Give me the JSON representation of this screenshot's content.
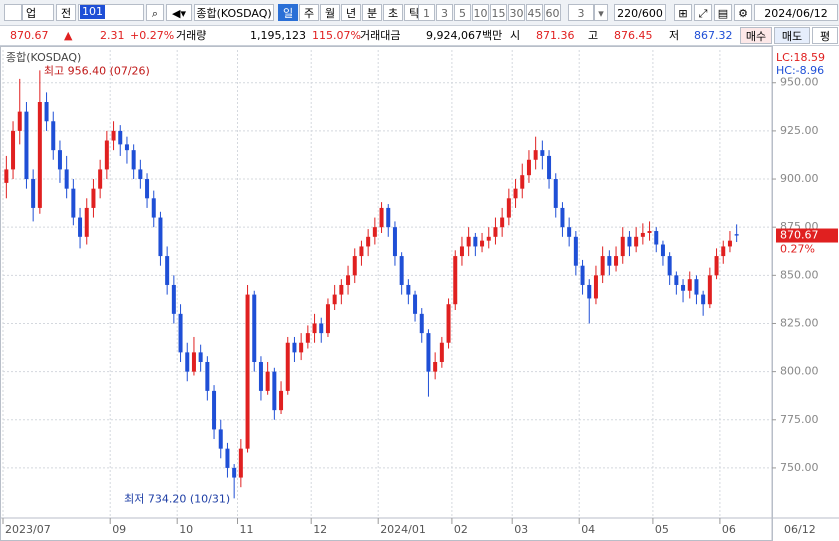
{
  "toolbar": {
    "market": "업",
    "scope": "전",
    "code": "101",
    "periods": [
      "일",
      "주",
      "월",
      "년",
      "분",
      "초",
      "틱"
    ],
    "intervals": [
      "1",
      "3",
      "5",
      "10",
      "15",
      "30",
      "45",
      "60"
    ],
    "count": "3",
    "range": "220/600",
    "date": "2024/06/12"
  },
  "info": {
    "change": "2.31",
    "change_pct": "+0.27%",
    "volume_label": "거래량",
    "volume": "1,195,123",
    "volume_pct": "115.07%",
    "amount_label": "거래대금",
    "amount": "9,924,067백만",
    "open_label": "시",
    "high_label": "고",
    "low_label": "저",
    "buy": "매수",
    "sell": "매도",
    "avg": "평"
  },
  "chart_data": {
    "type": "candlestick",
    "title": "종합(KOSDAQ)",
    "lc": "LC:18.59",
    "hc": "HC:-8.96",
    "last_change": "0.27%",
    "up_color": "#e02020",
    "down_color": "#1f4fd6",
    "annotations": [
      "최고 956.40 (07/26)",
      "최저 734.20 (10/31)"
    ],
    "ylim": [
      724,
      967
    ],
    "yticks": [
      {
        "value": 750,
        "label": "750.00"
      },
      {
        "value": 775,
        "label": "775.00"
      },
      {
        "value": 800,
        "label": "800.00"
      },
      {
        "value": 825,
        "label": "825.00"
      },
      {
        "value": 850,
        "label": "850.00"
      },
      {
        "value": 875,
        "label": "875.00"
      },
      {
        "value": 900,
        "label": "900.00"
      },
      {
        "value": 925,
        "label": "925.00"
      },
      {
        "value": 950,
        "label": "950.00"
      }
    ],
    "xticks": [
      {
        "value": 0,
        "label": "2023/07"
      },
      {
        "value": 16,
        "label": "09"
      },
      {
        "value": 26,
        "label": "10"
      },
      {
        "value": 35,
        "label": "11"
      },
      {
        "value": 46,
        "label": "12"
      },
      {
        "value": 56,
        "label": "2024/01"
      },
      {
        "value": 67,
        "label": "02"
      },
      {
        "value": 76,
        "label": "03"
      },
      {
        "value": 86,
        "label": "04"
      },
      {
        "value": 97,
        "label": "05"
      },
      {
        "value": 107,
        "label": "06"
      }
    ],
    "last_date": "06/12",
    "grid": true,
    "ohlc": [
      [
        898,
        912,
        890,
        905
      ],
      [
        905,
        930,
        900,
        925
      ],
      [
        925,
        952,
        918,
        935
      ],
      [
        935,
        940,
        895,
        900
      ],
      [
        900,
        905,
        878,
        885
      ],
      [
        885,
        956.4,
        882,
        940
      ],
      [
        940,
        945,
        925,
        930
      ],
      [
        930,
        935,
        910,
        915
      ],
      [
        915,
        920,
        898,
        905
      ],
      [
        905,
        912,
        890,
        895
      ],
      [
        895,
        900,
        876,
        880
      ],
      [
        880,
        885,
        864,
        870
      ],
      [
        870,
        890,
        866,
        885
      ],
      [
        885,
        900,
        880,
        895
      ],
      [
        895,
        910,
        890,
        905
      ],
      [
        905,
        925,
        900,
        920
      ],
      [
        920,
        930,
        915,
        925
      ],
      [
        925,
        928,
        912,
        918
      ],
      [
        918,
        922,
        908,
        915
      ],
      [
        915,
        918,
        900,
        905
      ],
      [
        905,
        910,
        895,
        900
      ],
      [
        900,
        903,
        885,
        890
      ],
      [
        890,
        894,
        875,
        880
      ],
      [
        880,
        883,
        855,
        860
      ],
      [
        860,
        865,
        840,
        845
      ],
      [
        845,
        850,
        825,
        830
      ],
      [
        830,
        835,
        805,
        810
      ],
      [
        810,
        815,
        795,
        800
      ],
      [
        800,
        818,
        798,
        810
      ],
      [
        810,
        814,
        800,
        805
      ],
      [
        805,
        808,
        785,
        790
      ],
      [
        790,
        793,
        765,
        770
      ],
      [
        770,
        775,
        755,
        760
      ],
      [
        760,
        763,
        745,
        750
      ],
      [
        750,
        752,
        734.2,
        745
      ],
      [
        745,
        765,
        740,
        760
      ],
      [
        760,
        845,
        758,
        840
      ],
      [
        840,
        842,
        800,
        805
      ],
      [
        805,
        808,
        785,
        790
      ],
      [
        790,
        805,
        788,
        800
      ],
      [
        800,
        802,
        775,
        780
      ],
      [
        780,
        795,
        778,
        790
      ],
      [
        790,
        818,
        788,
        815
      ],
      [
        815,
        818,
        805,
        810
      ],
      [
        810,
        820,
        806,
        815
      ],
      [
        815,
        824,
        812,
        820
      ],
      [
        820,
        830,
        815,
        825
      ],
      [
        825,
        828,
        815,
        820
      ],
      [
        820,
        838,
        818,
        835
      ],
      [
        835,
        845,
        832,
        840
      ],
      [
        840,
        848,
        835,
        845
      ],
      [
        845,
        855,
        840,
        850
      ],
      [
        850,
        864,
        846,
        860
      ],
      [
        860,
        868,
        855,
        865
      ],
      [
        865,
        874,
        860,
        870
      ],
      [
        870,
        880,
        866,
        875
      ],
      [
        875,
        888,
        872,
        885
      ],
      [
        885,
        887,
        870,
        875
      ],
      [
        875,
        878,
        855,
        860
      ],
      [
        860,
        862,
        840,
        845
      ],
      [
        845,
        848,
        835,
        840
      ],
      [
        840,
        842,
        826,
        830
      ],
      [
        830,
        833,
        815,
        820
      ],
      [
        820,
        822,
        787,
        800
      ],
      [
        800,
        810,
        796,
        805
      ],
      [
        805,
        818,
        802,
        815
      ],
      [
        815,
        838,
        812,
        835
      ],
      [
        835,
        863,
        832,
        860
      ],
      [
        860,
        870,
        855,
        865
      ],
      [
        865,
        875,
        860,
        870
      ],
      [
        870,
        872,
        860,
        865
      ],
      [
        865,
        872,
        862,
        868
      ],
      [
        868,
        875,
        864,
        870
      ],
      [
        870,
        880,
        866,
        875
      ],
      [
        875,
        885,
        870,
        880
      ],
      [
        880,
        895,
        876,
        890
      ],
      [
        890,
        900,
        885,
        895
      ],
      [
        895,
        908,
        890,
        902
      ],
      [
        902,
        915,
        898,
        910
      ],
      [
        910,
        922,
        905,
        915
      ],
      [
        915,
        920,
        905,
        912
      ],
      [
        912,
        915,
        895,
        900
      ],
      [
        900,
        903,
        880,
        885
      ],
      [
        885,
        888,
        870,
        875
      ],
      [
        875,
        880,
        865,
        870
      ],
      [
        870,
        873,
        850,
        855
      ],
      [
        855,
        858,
        840,
        845
      ],
      [
        845,
        848,
        825,
        838
      ],
      [
        838,
        855,
        835,
        850
      ],
      [
        850,
        865,
        846,
        860
      ],
      [
        860,
        863,
        850,
        855
      ],
      [
        855,
        865,
        852,
        860
      ],
      [
        860,
        875,
        856,
        870
      ],
      [
        870,
        873,
        860,
        865
      ],
      [
        865,
        875,
        862,
        870
      ],
      [
        870,
        877,
        866,
        872
      ],
      [
        872,
        878,
        868,
        873
      ],
      [
        873,
        875,
        862,
        866
      ],
      [
        866,
        868,
        855,
        860
      ],
      [
        860,
        862,
        845,
        850
      ],
      [
        850,
        852,
        840,
        845
      ],
      [
        845,
        848,
        836,
        842
      ],
      [
        842,
        852,
        838,
        848
      ],
      [
        848,
        850,
        835,
        840
      ],
      [
        840,
        842,
        829,
        835
      ],
      [
        835,
        854,
        833,
        850
      ],
      [
        850,
        864,
        848,
        860
      ],
      [
        860,
        868,
        856,
        865
      ],
      [
        865,
        873,
        862,
        868
      ],
      [
        871.36,
        876.45,
        867.32,
        870.67
      ]
    ]
  }
}
